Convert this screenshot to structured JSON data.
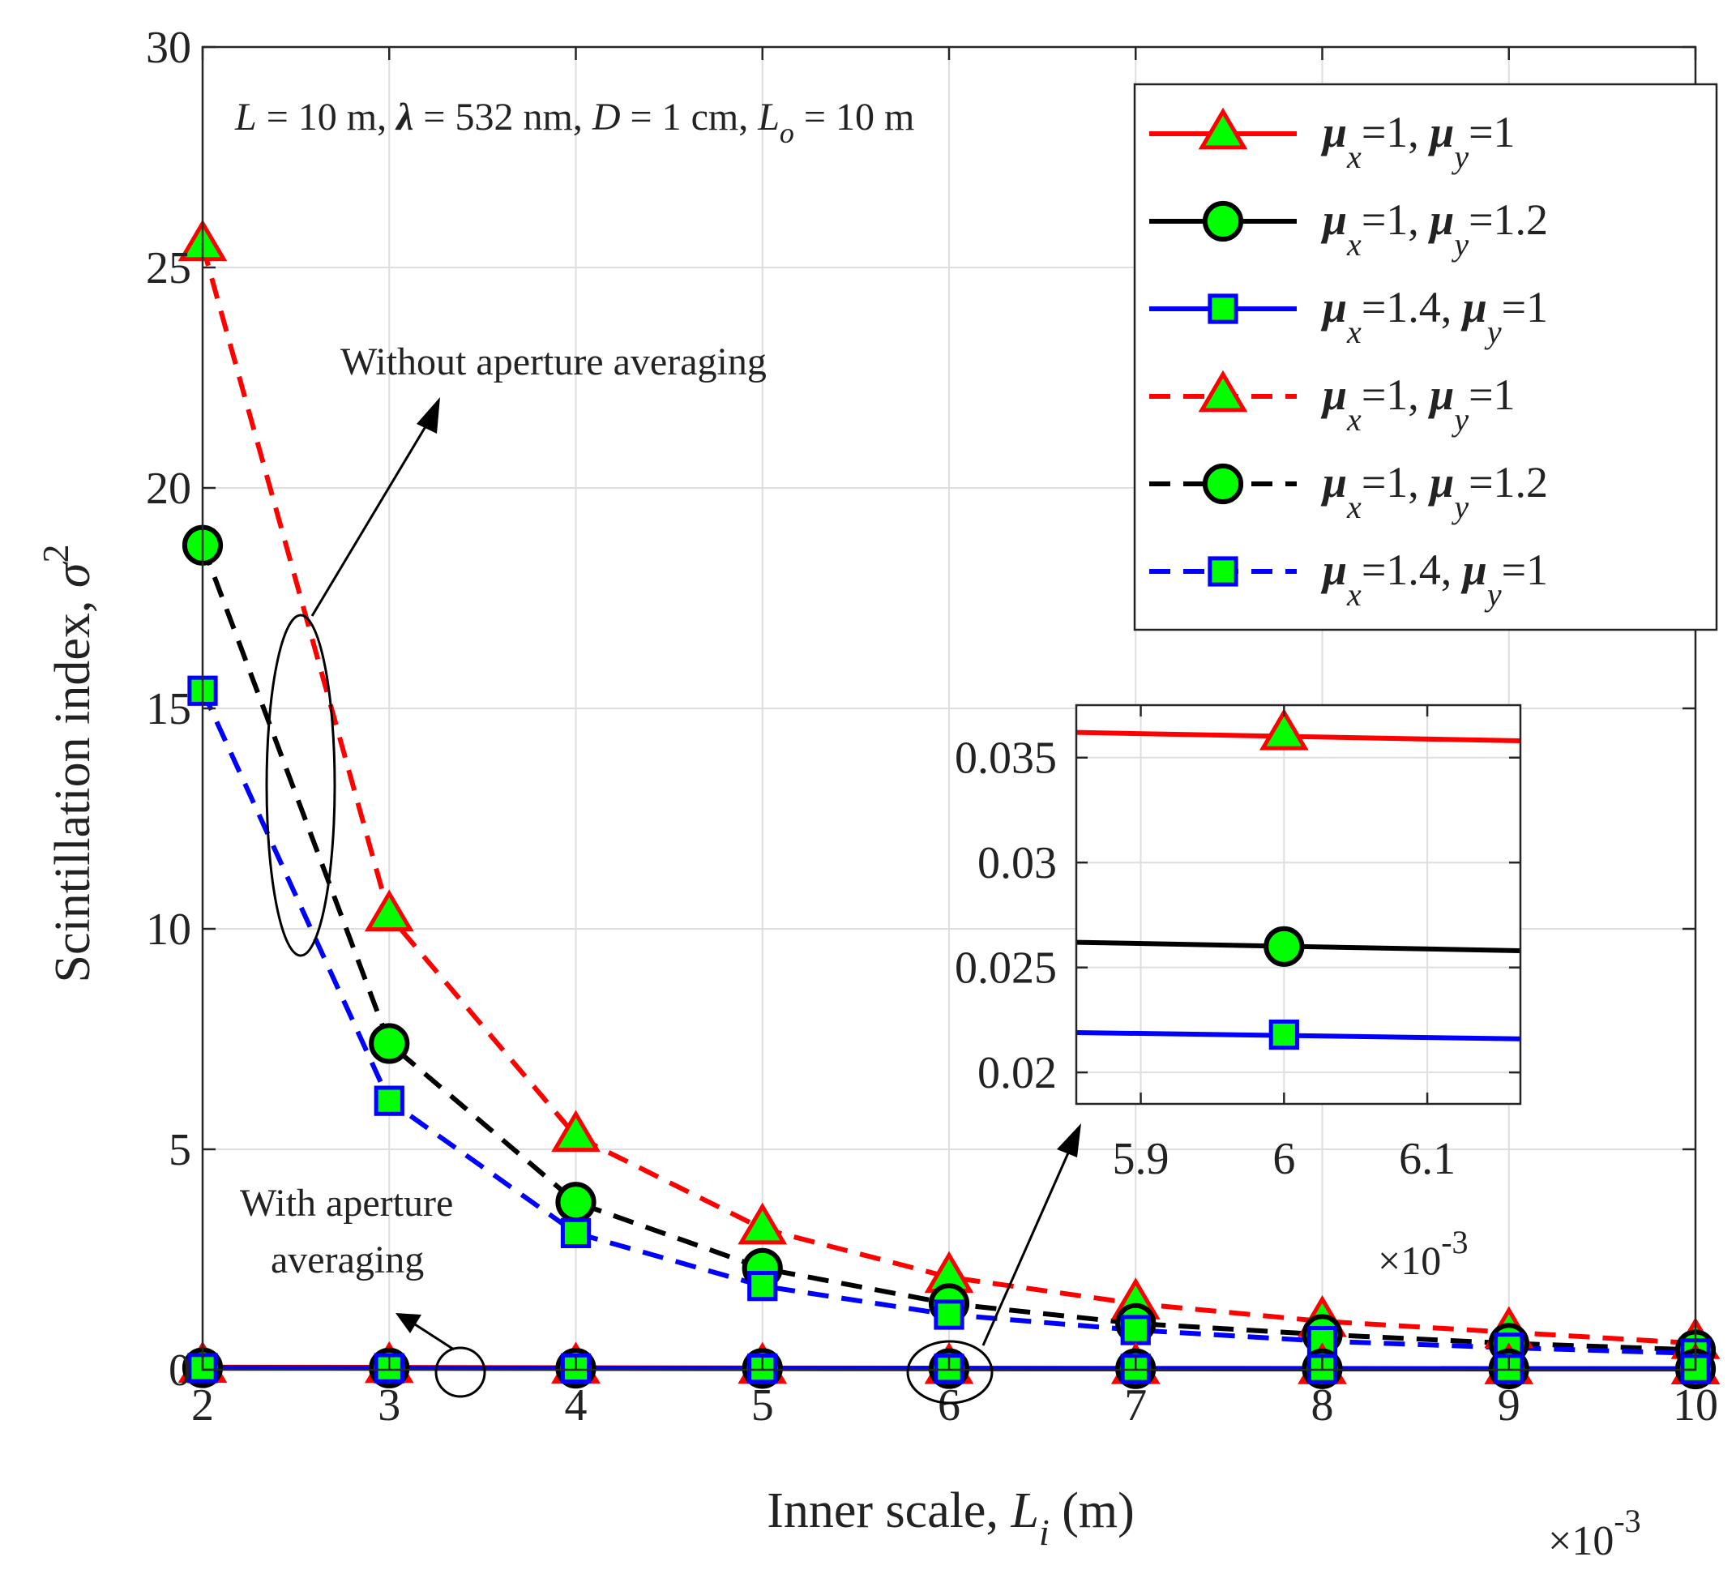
{
  "chart_data": [
    {
      "id": "main",
      "type": "line",
      "title": "",
      "xlabel": "Inner scale, L_i (m)",
      "xlabel_parts": {
        "prefix": "Inner scale, ",
        "symbol": "L",
        "sub": "i",
        "suffix": " (m)"
      },
      "ylabel": "Scintillation index, σ^2",
      "ylabel_parts": {
        "prefix": "Scintillation index, ",
        "symbol": "σ",
        "sup": "2"
      },
      "x_multiplier": {
        "base": "×10",
        "exp": "-3"
      },
      "xlim": [
        2,
        10
      ],
      "ylim": [
        0,
        30
      ],
      "xticks": [
        2,
        3,
        4,
        5,
        6,
        7,
        8,
        9,
        10
      ],
      "yticks": [
        0,
        5,
        10,
        15,
        20,
        25,
        30
      ],
      "grid": true,
      "legend_position": "top-right",
      "x": [
        2,
        3,
        4,
        5,
        6,
        7,
        8,
        9,
        10
      ],
      "series": [
        {
          "name": "μx=1, μy=1",
          "mu_x": "1",
          "mu_y": "1",
          "line": "solid",
          "color": "#ff0000",
          "marker": "triangle",
          "values": [
            0.06,
            0.055,
            0.045,
            0.04,
            0.036,
            0.033,
            0.03,
            0.028,
            0.026
          ]
        },
        {
          "name": "μx=1, μy=1.2",
          "mu_x": "1",
          "mu_y": "1.2",
          "line": "solid",
          "color": "#000000",
          "marker": "circle",
          "values": [
            0.045,
            0.04,
            0.034,
            0.03,
            0.026,
            0.024,
            0.022,
            0.02,
            0.019
          ]
        },
        {
          "name": "μx=1.4, μy=1",
          "mu_x": "1.4",
          "mu_y": "1",
          "line": "solid",
          "color": "#0000ff",
          "marker": "square",
          "values": [
            0.038,
            0.034,
            0.029,
            0.025,
            0.022,
            0.02,
            0.018,
            0.017,
            0.016
          ]
        },
        {
          "name": "μx=1, μy=1",
          "mu_x": "1",
          "mu_y": "1",
          "line": "dashed",
          "color": "#ff0000",
          "marker": "triangle",
          "values": [
            25.5,
            10.3,
            5.3,
            3.2,
            2.1,
            1.5,
            1.1,
            0.85,
            0.6
          ]
        },
        {
          "name": "μx=1, μy=1.2",
          "mu_x": "1",
          "mu_y": "1.2",
          "line": "dashed",
          "color": "#000000",
          "marker": "circle",
          "values": [
            18.7,
            7.4,
            3.8,
            2.3,
            1.5,
            1.05,
            0.8,
            0.6,
            0.45
          ]
        },
        {
          "name": "μx=1.4, μy=1",
          "mu_x": "1.4",
          "mu_y": "1",
          "line": "dashed",
          "color": "#0000ff",
          "marker": "square",
          "values": [
            15.4,
            6.1,
            3.1,
            1.9,
            1.25,
            0.9,
            0.65,
            0.5,
            0.37
          ]
        }
      ],
      "annotations": {
        "params": {
          "L": "L",
          "L_rest": " = 10 m, ",
          "lambda": "λ",
          "lambda_rest": " = 532 nm, ",
          "D": "D",
          "D_rest": " = 1 cm, ",
          "Lo": "L",
          "Lo_sub": "o",
          "Lo_rest": " = 10 m"
        },
        "without": "Without aperture averaging",
        "with_line1": "With aperture",
        "with_line2": "averaging"
      }
    },
    {
      "id": "inset",
      "type": "line",
      "xlim": [
        5.855,
        6.165
      ],
      "ylim": [
        0.0185,
        0.0375
      ],
      "xticks": [
        5.9,
        6,
        6.1
      ],
      "xtick_labels": [
        "5.9",
        "6",
        "6.1"
      ],
      "yticks": [
        0.02,
        0.025,
        0.03,
        0.035
      ],
      "ytick_labels": [
        "0.02",
        "0.025",
        "0.03",
        "0.035"
      ],
      "x_multiplier": {
        "base": "×10",
        "exp": "-3"
      },
      "grid": true,
      "series": [
        {
          "name": "μx=1, μy=1",
          "color": "#ff0000",
          "marker": "triangle",
          "line_start": 0.0362,
          "line_end": 0.0358,
          "marker_x": 6,
          "marker_y": 0.0361
        },
        {
          "name": "μx=1, μy=1.2",
          "color": "#000000",
          "marker": "circle",
          "line_start": 0.0262,
          "line_end": 0.0258,
          "marker_x": 6,
          "marker_y": 0.026
        },
        {
          "name": "μx=1.4, μy=1",
          "color": "#0000ff",
          "marker": "square",
          "line_start": 0.0219,
          "line_end": 0.0216,
          "marker_x": 6,
          "marker_y": 0.0218
        }
      ]
    }
  ]
}
